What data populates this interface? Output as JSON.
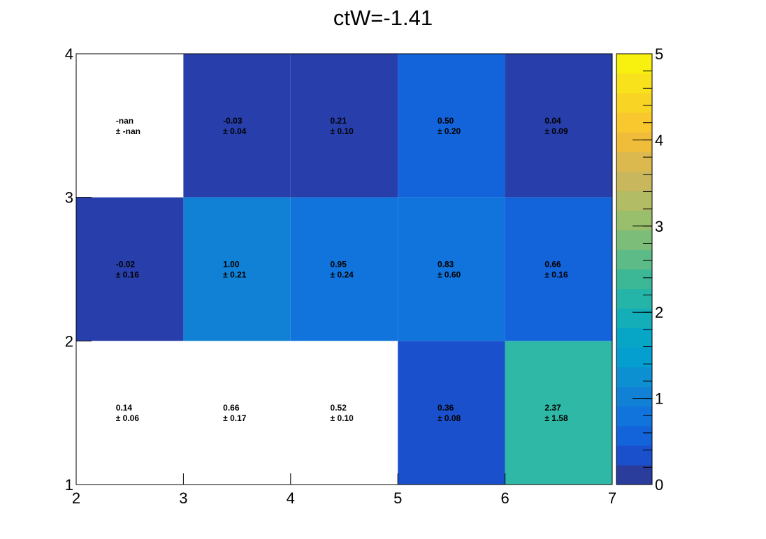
{
  "chart_data": {
    "type": "heatmap",
    "title": "ctW=-1.41",
    "xlabel": "",
    "ylabel": "",
    "x_edges": [
      2,
      3,
      4,
      5,
      6,
      7
    ],
    "y_edges": [
      1,
      2,
      3,
      4
    ],
    "xlim": [
      2,
      7
    ],
    "ylim": [
      1,
      4
    ],
    "x_tick_labels": [
      "2",
      "3",
      "4",
      "5",
      "6",
      "7"
    ],
    "y_tick_labels": [
      "1",
      "2",
      "3",
      "4"
    ],
    "zlim": [
      0,
      5
    ],
    "z_tick_labels": [
      "0",
      "1",
      "2",
      "3",
      "4",
      "5"
    ],
    "grid": false,
    "colorbar": "right",
    "cells": [
      {
        "x": [
          2,
          3
        ],
        "y": [
          3,
          4
        ],
        "value": null,
        "label": "-nan",
        "error_label": "± -nan"
      },
      {
        "x": [
          3,
          4
        ],
        "y": [
          3,
          4
        ],
        "value": -0.03,
        "label": "-0.03",
        "error_label": "± 0.04"
      },
      {
        "x": [
          4,
          5
        ],
        "y": [
          3,
          4
        ],
        "value": 0.21,
        "label": "0.21",
        "error_label": "± 0.10"
      },
      {
        "x": [
          5,
          6
        ],
        "y": [
          3,
          4
        ],
        "value": 0.5,
        "label": "0.50",
        "error_label": "± 0.20"
      },
      {
        "x": [
          6,
          7
        ],
        "y": [
          3,
          4
        ],
        "value": 0.04,
        "label": "0.04",
        "error_label": "± 0.09"
      },
      {
        "x": [
          2,
          3
        ],
        "y": [
          2,
          3
        ],
        "value": -0.02,
        "label": "-0.02",
        "error_label": "± 0.16"
      },
      {
        "x": [
          3,
          4
        ],
        "y": [
          2,
          3
        ],
        "value": 1.0,
        "label": "1.00",
        "error_label": "± 0.21"
      },
      {
        "x": [
          4,
          5
        ],
        "y": [
          2,
          3
        ],
        "value": 0.95,
        "label": "0.95",
        "error_label": "± 0.24"
      },
      {
        "x": [
          5,
          6
        ],
        "y": [
          2,
          3
        ],
        "value": 0.83,
        "label": "0.83",
        "error_label": "± 0.60"
      },
      {
        "x": [
          6,
          7
        ],
        "y": [
          2,
          3
        ],
        "value": 0.66,
        "label": "0.66",
        "error_label": "± 0.16"
      },
      {
        "x": [
          2,
          3
        ],
        "y": [
          1,
          2
        ],
        "value": 0.14,
        "label": "0.14",
        "error_label": "± 0.06"
      },
      {
        "x": [
          3,
          4
        ],
        "y": [
          1,
          2
        ],
        "value": 0.66,
        "label": "0.66",
        "error_label": "± 0.17"
      },
      {
        "x": [
          4,
          5
        ],
        "y": [
          1,
          2
        ],
        "value": 0.52,
        "label": "0.52",
        "error_label": "± 0.10"
      },
      {
        "x": [
          5,
          6
        ],
        "y": [
          1,
          2
        ],
        "value": 0.36,
        "label": "0.36",
        "error_label": "± 0.08"
      },
      {
        "x": [
          6,
          7
        ],
        "y": [
          1,
          2
        ],
        "value": 2.37,
        "label": "2.37",
        "error_label": "± 1.58"
      }
    ],
    "cell_colors": [
      "#ffffff",
      "#273eab",
      "#273eab",
      "#1363db",
      "#273eab",
      "#273eab",
      "#1181d6",
      "#1174dc",
      "#1174dc",
      "#1363db",
      "#ffffff",
      "#ffffff",
      "#ffffff",
      "#1a50cc",
      "#2fb8a6"
    ],
    "palette": [
      "#2a3c9c",
      "#1a50cc",
      "#1363db",
      "#1174dc",
      "#1181d6",
      "#0d90d2",
      "#049ecf",
      "#08a6c6",
      "#14aeb8",
      "#25b4a8",
      "#3cb897",
      "#5cbb87",
      "#7cbd7a",
      "#99be6c",
      "#b2bc64",
      "#c9b75e",
      "#dcb94f",
      "#f0bd3b",
      "#f9c82e",
      "#f8d425",
      "#f8e21b",
      "#f8f00e"
    ]
  }
}
